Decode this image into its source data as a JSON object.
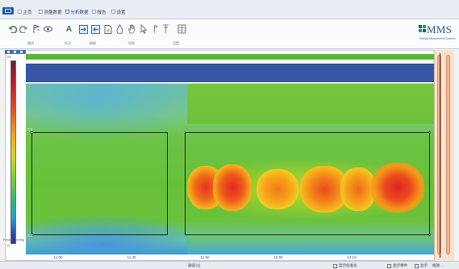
{
  "tabs": [
    {
      "label": "主页",
      "active": false
    },
    {
      "label": "测量数据",
      "active": false
    },
    {
      "label": "分析数据",
      "active": true
    },
    {
      "label": "报告",
      "active": false
    },
    {
      "label": "设置",
      "active": false
    }
  ],
  "ribbon": {
    "icons": [
      "undo-icon",
      "redo-icon",
      "marker-icon",
      "eye-icon",
      "annotation-icon",
      "zoom-in-icon",
      "zoom-out-icon",
      "page-icon",
      "drop-icon",
      "hand-icon",
      "cursor-icon",
      "pin-icon",
      "pin-alt-icon",
      "grid-icon"
    ],
    "annotation_glyph": "A",
    "groups": [
      "撤消",
      "标注",
      "缩放",
      "导航",
      "设置"
    ]
  },
  "logo": {
    "text": "MMS",
    "subtitle": "Medical Measurement Systems"
  },
  "color_scale": {
    "top_label": "200",
    "bottom_label": "-10",
    "unit": "Pressure (mmHg)"
  },
  "plot": {
    "marker_left_top": "0.0",
    "marker_left_bottom": "0.0",
    "time_labels": [
      "11:00",
      "11:40",
      "11:50",
      "12:00",
      "12:10"
    ]
  },
  "status": {
    "center": "通道 [1]",
    "right_items": [
      "显示标准化",
      "显示事件",
      "显示",
      "缩放 ..."
    ]
  },
  "colors": {
    "accent_blue": "#3658a4",
    "band_green": "#55b935",
    "heat_hot": "#e8301f"
  }
}
